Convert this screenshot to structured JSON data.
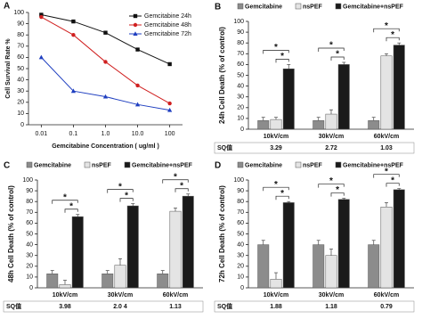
{
  "chart_data": [
    {
      "type": "line",
      "panel": "A",
      "ylabel": "Cell Survival Rate %",
      "xlabel": "Gemcitabine  Concentration  ( ug/ml )",
      "x": [
        0.01,
        0.1,
        1,
        10,
        100
      ],
      "log_x": true,
      "series": [
        {
          "name": "Gemcitabine 24h",
          "color": "#111111",
          "marker": "square",
          "values": [
            98,
            92,
            82,
            67,
            54
          ]
        },
        {
          "name": "Gemcitabine 48h",
          "color": "#d02020",
          "marker": "circle",
          "values": [
            96,
            80,
            56,
            35,
            19
          ]
        },
        {
          "name": "Gemcitabine 72h",
          "color": "#1f3fc0",
          "marker": "triangle",
          "values": [
            60,
            30,
            25,
            18,
            13
          ]
        }
      ],
      "xlim": [
        0.004,
        250
      ],
      "ylim": [
        0,
        100
      ],
      "xticks": [
        0.01,
        0.1,
        {
          "value": 1,
          "label": "1.0"
        },
        {
          "value": 10,
          "label": "10.0"
        },
        100
      ],
      "yticks": [
        0,
        10,
        20,
        30,
        40,
        50,
        60,
        70,
        80,
        90,
        100
      ]
    },
    {
      "type": "bar",
      "panel": "B",
      "ylabel": "24h Cell Death (% of control)",
      "categories": [
        "10kV/cm",
        "30kV/cm",
        "60kV/cm"
      ],
      "series": [
        {
          "name": "Gemcitabine",
          "color": "#8c8c8c",
          "values": [
            8,
            8,
            8
          ],
          "errors": [
            3,
            3,
            3
          ]
        },
        {
          "name": "nsPEF",
          "color": "#e4e4e4",
          "values": [
            9,
            14,
            68
          ],
          "errors": [
            2,
            4,
            2
          ]
        },
        {
          "name": "Gemcitabine+nsPEF",
          "color": "#1a1a1a",
          "values": [
            56,
            60,
            78
          ],
          "errors": [
            4,
            2,
            2
          ]
        }
      ],
      "ylim": [
        0,
        100
      ],
      "yticks": [
        0,
        10,
        20,
        30,
        40,
        50,
        60,
        70,
        80,
        90,
        100
      ],
      "annotation": "*",
      "sq_label": "SQ值",
      "sq_values": [
        "3.29",
        "2.72",
        "1.03"
      ]
    },
    {
      "type": "bar",
      "panel": "C",
      "ylabel": "48h Cell Death (% of control)",
      "categories": [
        "10kV/cm",
        "30kV/cm",
        "60kV/cm"
      ],
      "series": [
        {
          "name": "Gemcitabine",
          "color": "#8c8c8c",
          "values": [
            13,
            13,
            13
          ],
          "errors": [
            3,
            3,
            3
          ]
        },
        {
          "name": "nsPEF",
          "color": "#e4e4e4",
          "values": [
            3,
            21,
            71
          ],
          "errors": [
            4,
            6,
            3
          ]
        },
        {
          "name": "Gemcitabine+nsPEF",
          "color": "#1a1a1a",
          "values": [
            66,
            76,
            85
          ],
          "errors": [
            2,
            2,
            2
          ]
        }
      ],
      "ylim": [
        0,
        100
      ],
      "yticks": [
        0,
        10,
        20,
        30,
        40,
        50,
        60,
        70,
        80,
        90,
        100
      ],
      "annotation": "*",
      "sq_label": "SQ值",
      "sq_values": [
        "3.98",
        "2.0 4",
        "1.13"
      ]
    },
    {
      "type": "bar",
      "panel": "D",
      "ylabel": "72h Cell Death (% of control)",
      "categories": [
        "10kV/cm",
        "30kV/cm",
        "60kV/cm"
      ],
      "series": [
        {
          "name": "Gemcitabine",
          "color": "#8c8c8c",
          "values": [
            40,
            40,
            40
          ],
          "errors": [
            4,
            4,
            4
          ]
        },
        {
          "name": "nsPEF",
          "color": "#e4e4e4",
          "values": [
            8,
            30,
            75
          ],
          "errors": [
            6,
            6,
            4
          ]
        },
        {
          "name": "Gemcitabine+nsPEF",
          "color": "#1a1a1a",
          "values": [
            79,
            82,
            91
          ],
          "errors": [
            1,
            1,
            1
          ]
        }
      ],
      "ylim": [
        0,
        100
      ],
      "yticks": [
        0,
        10,
        20,
        30,
        40,
        50,
        60,
        70,
        80,
        90,
        100
      ],
      "annotation": "*",
      "sq_label": "SQ值",
      "sq_values": [
        "1.88",
        "1.18",
        "0.79"
      ]
    }
  ]
}
